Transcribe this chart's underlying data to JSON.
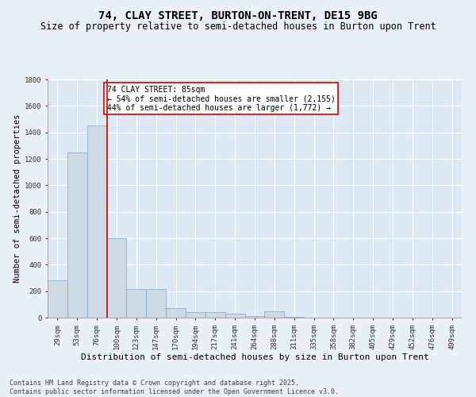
{
  "title": "74, CLAY STREET, BURTON-ON-TRENT, DE15 9BG",
  "subtitle": "Size of property relative to semi-detached houses in Burton upon Trent",
  "xlabel": "Distribution of semi-detached houses by size in Burton upon Trent",
  "ylabel": "Number of semi-detached properties",
  "categories": [
    "29sqm",
    "53sqm",
    "76sqm",
    "100sqm",
    "123sqm",
    "147sqm",
    "170sqm",
    "194sqm",
    "217sqm",
    "241sqm",
    "264sqm",
    "288sqm",
    "311sqm",
    "335sqm",
    "358sqm",
    "382sqm",
    "405sqm",
    "429sqm",
    "452sqm",
    "476sqm",
    "499sqm"
  ],
  "values": [
    280,
    1250,
    1450,
    600,
    215,
    215,
    75,
    45,
    40,
    30,
    15,
    50,
    8,
    3,
    2,
    1,
    1,
    1,
    0,
    0,
    0
  ],
  "bar_color": "#cdd9e5",
  "bar_edge_color": "#7baac8",
  "vline_x": 2.5,
  "vline_color": "#cc0000",
  "annotation_text": "74 CLAY STREET: 85sqm\n← 54% of semi-detached houses are smaller (2,155)\n44% of semi-detached houses are larger (1,772) →",
  "annotation_box_color": "#ffffff",
  "annotation_box_edge": "#cc0000",
  "ylim": [
    0,
    1800
  ],
  "yticks": [
    0,
    200,
    400,
    600,
    800,
    1000,
    1200,
    1400,
    1600,
    1800
  ],
  "bg_color": "#eaf0f8",
  "plot_bg_color": "#dce8f4",
  "grid_color": "#ffffff",
  "footer": "Contains HM Land Registry data © Crown copyright and database right 2025.\nContains public sector information licensed under the Open Government Licence v3.0.",
  "title_fontsize": 10,
  "subtitle_fontsize": 8.5,
  "xlabel_fontsize": 8,
  "ylabel_fontsize": 7.5,
  "tick_fontsize": 6.5,
  "annotation_fontsize": 7,
  "footer_fontsize": 6
}
